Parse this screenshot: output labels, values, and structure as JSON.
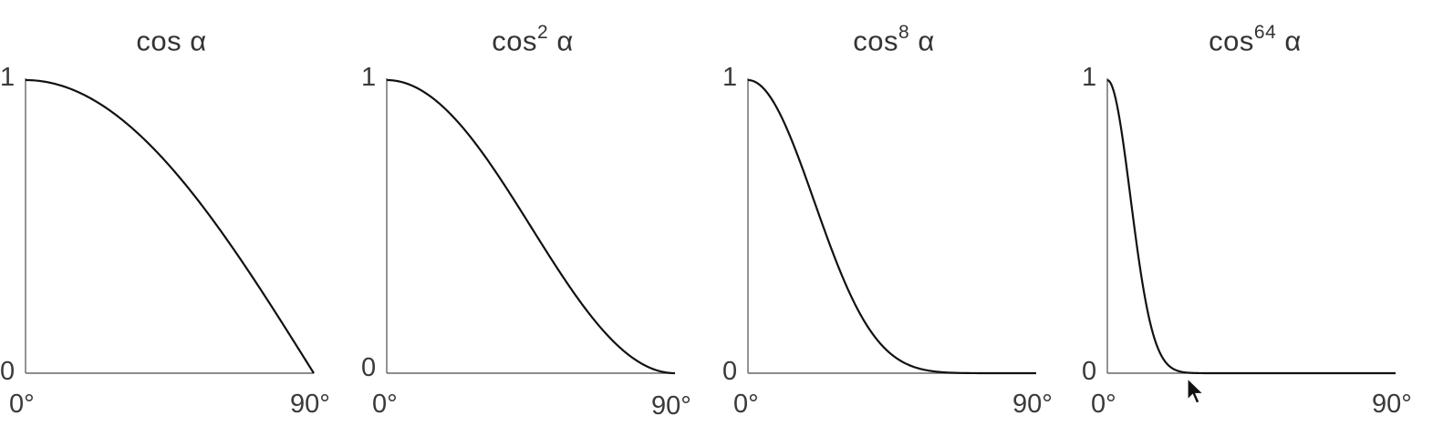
{
  "chart_data": [
    {
      "type": "line",
      "title_base": "cos",
      "title_exponent": "",
      "title_symbol": "α",
      "exponent_n": 1,
      "x_tick_labels": [
        "0°",
        "90°"
      ],
      "y_tick_labels": [
        "0",
        "1"
      ],
      "xlim": [
        0,
        90
      ],
      "ylim": [
        0,
        1
      ],
      "x": [
        0,
        15,
        30,
        45,
        60,
        75,
        90
      ],
      "y": [
        1.0,
        0.966,
        0.866,
        0.707,
        0.5,
        0.259,
        0.0
      ]
    },
    {
      "type": "line",
      "title_base": "cos",
      "title_exponent": "2",
      "title_symbol": "α",
      "exponent_n": 2,
      "x_tick_labels": [
        "0°",
        "90°"
      ],
      "y_tick_labels": [
        "0",
        "1"
      ],
      "xlim": [
        0,
        90
      ],
      "ylim": [
        0,
        1
      ],
      "x": [
        0,
        15,
        30,
        45,
        60,
        75,
        90
      ],
      "y": [
        1.0,
        0.933,
        0.75,
        0.5,
        0.25,
        0.067,
        0.0
      ]
    },
    {
      "type": "line",
      "title_base": "cos",
      "title_exponent": "8",
      "title_symbol": "α",
      "exponent_n": 8,
      "x_tick_labels": [
        "0°",
        "90°"
      ],
      "y_tick_labels": [
        "0",
        "1"
      ],
      "xlim": [
        0,
        90
      ],
      "ylim": [
        0,
        1
      ],
      "x": [
        0,
        15,
        30,
        45,
        60,
        75,
        90
      ],
      "y": [
        1.0,
        0.758,
        0.316,
        0.0625,
        0.0039,
        2e-05,
        0.0
      ]
    },
    {
      "type": "line",
      "title_base": "cos",
      "title_exponent": "64",
      "title_symbol": "α",
      "exponent_n": 64,
      "x_tick_labels": [
        "0°",
        "90°"
      ],
      "y_tick_labels": [
        "0",
        "1"
      ],
      "xlim": [
        0,
        90
      ],
      "ylim": [
        0,
        1
      ],
      "x": [
        0,
        5,
        10,
        15,
        20,
        30,
        45,
        90
      ],
      "y": [
        1.0,
        0.784,
        0.378,
        0.109,
        0.019,
        0.0,
        0.0,
        0.0
      ]
    }
  ],
  "colors": {
    "curve": "#111111",
    "axis": "#666666",
    "text": "#333333"
  }
}
